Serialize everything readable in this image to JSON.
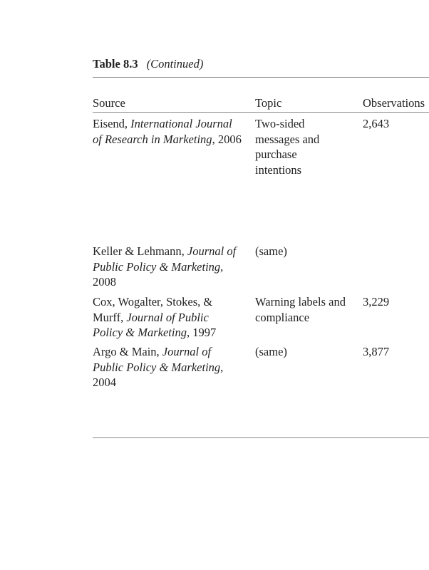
{
  "table": {
    "label": "Table 8.3",
    "continued": "(Continued)",
    "headers": [
      "Source",
      "Topic",
      "Observations"
    ],
    "rows": [
      {
        "author": "Eisend, ",
        "journal": "International Journal of Research in Marketing",
        "tail": ", 2006",
        "topic": "Two-sided messages and purchase intentions",
        "observations": "2,643"
      },
      {
        "author": "Keller & Lehmann, ",
        "journal": "Journal of Public Policy & Marketing",
        "tail": ", 2008",
        "topic": "(same)",
        "observations": ""
      },
      {
        "author": "Cox, Wogalter, Stokes, & Murff, ",
        "journal": "Journal of Public Policy & Marketing",
        "tail": ", 1997",
        "topic": "Warning labels and compliance",
        "observations": "3,229"
      },
      {
        "author": "Argo & Main, ",
        "journal": "Journal of Public Policy & Marketing",
        "tail": ", 2004",
        "topic": "(same)",
        "observations": "3,877"
      }
    ]
  }
}
